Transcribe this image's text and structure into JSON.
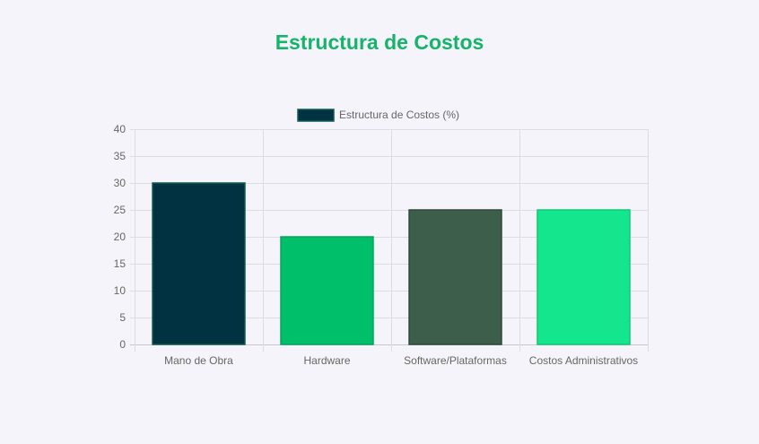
{
  "page": {
    "title": "Estructura de Costos"
  },
  "chart_data": {
    "type": "bar",
    "title": "Estructura de Costos",
    "categories": [
      "Mano de Obra",
      "Hardware",
      "Software/Plataformas",
      "Costos Administrativos"
    ],
    "series": [
      {
        "name": "Estructura de Costos (%)",
        "values": [
          30,
          20,
          25,
          25
        ]
      }
    ],
    "bar_colors": [
      "#003241",
      "#00bf6a",
      "#3c5e4b",
      "#13e68c"
    ],
    "bar_border_colors": [
      "#0d5c50",
      "#06a35c",
      "#2e4a3a",
      "#11c978"
    ],
    "legend_swatch_color": "#003241",
    "legend_position": "top",
    "xlabel": "",
    "ylabel": "",
    "ylim": [
      0,
      40
    ],
    "yticks": [
      "0",
      "5",
      "10",
      "15",
      "20",
      "25",
      "30",
      "35",
      "40"
    ],
    "grid": true
  }
}
